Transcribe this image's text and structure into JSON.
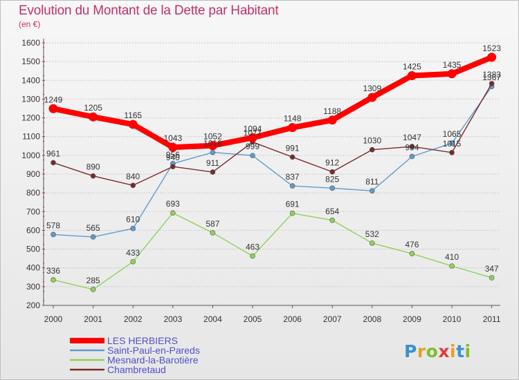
{
  "header": {
    "title": "Evolution du Montant de la Dette par Habitant",
    "unit": "(en €)"
  },
  "logo": {
    "text": "Proxiti",
    "letter_colors": [
      "#3a8fd6",
      "#e8a020",
      "#7bbf2a",
      "#e03c3c",
      "#e8a020",
      "#3a8fd6",
      "#7bbf2a"
    ]
  },
  "colors": {
    "title": "#c0306a",
    "axis_text": "#333333",
    "grid": "#c8c8c8",
    "background_top": "#f7f7f7",
    "background_bottom": "#e6e6e6"
  },
  "chart_data": {
    "type": "line",
    "title": "Evolution du Montant de la Dette par Habitant",
    "ylabel": "(en €)",
    "xlabel": "",
    "x": [
      "2000",
      "2001",
      "2002",
      "2003",
      "2004",
      "2005",
      "2006",
      "2007",
      "2008",
      "2009",
      "2010",
      "2011"
    ],
    "ylim": [
      200,
      1600
    ],
    "yticks": [
      200,
      300,
      400,
      500,
      600,
      700,
      800,
      900,
      1000,
      1100,
      1200,
      1300,
      1400,
      1500,
      1600
    ],
    "grid": "horizontal",
    "legend_position": "bottom-left",
    "series": [
      {
        "name": "LES HERBIERS",
        "color": "#ff0000",
        "values": [
          1249,
          1205,
          1165,
          1043,
          1052,
          1094,
          1148,
          1188,
          1309,
          1425,
          1435,
          1523
        ],
        "labels": [
          "1249",
          "1205",
          "1165",
          "1043",
          "1052",
          "1094",
          "1148",
          "1188",
          "1309",
          "1425",
          "1435",
          "1523"
        ]
      },
      {
        "name": "Saint-Paul-en-Pareds",
        "color": "#5d9ccf",
        "values": [
          578,
          565,
          610,
          956,
          1016,
          999,
          837,
          825,
          811,
          994,
          1065,
          1367
        ],
        "labels": [
          "578",
          "565",
          "610",
          "956",
          "1016",
          "999",
          "837",
          "825",
          "811",
          "994",
          "1065",
          "1367"
        ]
      },
      {
        "name": "Mesnard-la-Barotière",
        "color": "#8fd15a",
        "values": [
          336,
          285,
          433,
          693,
          587,
          463,
          691,
          654,
          532,
          476,
          410,
          347
        ],
        "labels": [
          "336",
          "285",
          "433",
          "693",
          "587",
          "463",
          "691",
          "654",
          "532",
          "476",
          "410",
          "347"
        ]
      },
      {
        "name": "Chambretaud",
        "color": "#7a2a2a",
        "values": [
          961,
          890,
          840,
          940,
          911,
          1071,
          991,
          912,
          1030,
          1047,
          1015,
          1383
        ],
        "labels": [
          "961",
          "890",
          "840",
          "940",
          "911",
          "1071",
          "991",
          "912",
          "1030",
          "1047",
          "1015",
          "1383"
        ]
      }
    ]
  }
}
